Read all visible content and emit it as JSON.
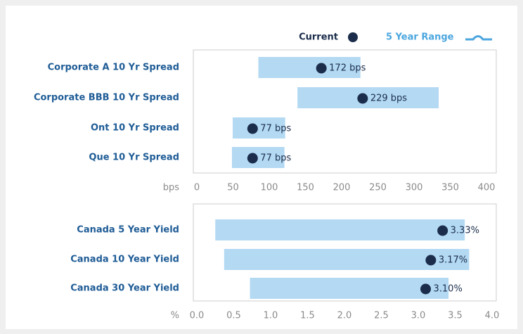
{
  "legend": {
    "current": {
      "name": "Current",
      "color": "#1b2d4b"
    },
    "range": {
      "name": "5 Year Range",
      "color": "#4ba6df"
    }
  },
  "chart_data": [
    {
      "type": "range_bar",
      "xlabel": "bps",
      "categories": [
        "Corporate A 10 Yr Spread",
        "Corporate BBB 10 Yr Spread",
        "Ont 10 Yr Spread",
        "Que 10 Yr Spread"
      ],
      "low": [
        85,
        139,
        49.5,
        48.5
      ],
      "high": [
        226,
        334,
        122,
        121
      ],
      "values": [
        172,
        229,
        77,
        77
      ],
      "value_labels": [
        "172 bps",
        "229 bps",
        "77 bps",
        "77 bps"
      ],
      "range_color": "#b3d9f3",
      "color": "#1b2d4b",
      "xlim": [
        0,
        400
      ],
      "xticks": [
        0,
        50,
        100,
        150,
        200,
        250,
        300,
        350,
        400
      ]
    },
    {
      "type": "range_bar",
      "xlabel": "%",
      "categories": [
        "Canada 5 Year Yield",
        "Canada 10 Year Yield",
        "Canada 30 Year Yield"
      ],
      "low": [
        0.25,
        0.37,
        0.72
      ],
      "high": [
        3.63,
        3.69,
        3.41
      ],
      "values": [
        3.33,
        3.17,
        3.1
      ],
      "value_labels": [
        "3.33%",
        "3.17%",
        "3.10%"
      ],
      "range_color": "#b3d9f3",
      "color": "#1b2d4b",
      "xlim": [
        0,
        4
      ],
      "xticks": [
        {
          "value": 0,
          "label": "0.0"
        },
        {
          "value": 0.5,
          "label": "0.5"
        },
        {
          "value": 1,
          "label": "1.0"
        },
        {
          "value": 1.5,
          "label": "1.5"
        },
        {
          "value": 2,
          "label": "2.0"
        },
        {
          "value": 2.5,
          "label": "2.5"
        },
        {
          "value": 3,
          "label": "3.0"
        },
        {
          "value": 3.5,
          "label": "3.5"
        },
        {
          "value": 4,
          "label": "4.0"
        }
      ]
    }
  ]
}
